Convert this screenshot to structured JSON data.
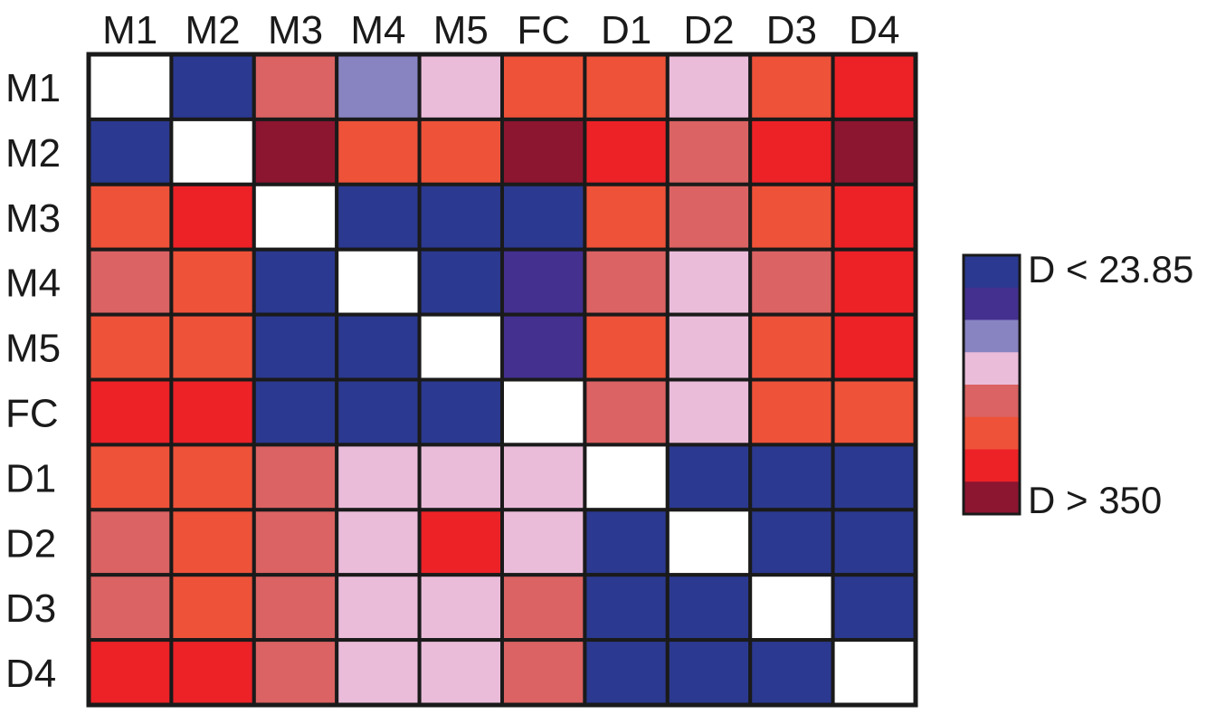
{
  "chart_data": {
    "type": "heatmap",
    "title": "",
    "columns": [
      "M1",
      "M2",
      "M3",
      "M4",
      "M5",
      "FC",
      "D1",
      "D2",
      "D3",
      "D4"
    ],
    "rows": [
      "M1",
      "M2",
      "M3",
      "M4",
      "M5",
      "FC",
      "D1",
      "D2",
      "D3",
      "D4"
    ],
    "levels": [
      {
        "color": "#ffffff"
      },
      {
        "color": "#2b3990"
      },
      {
        "color": "#43308f"
      },
      {
        "color": "#8884c2"
      },
      {
        "color": "#eabcda"
      },
      {
        "color": "#db6363"
      },
      {
        "color": "#ee5239"
      },
      {
        "color": "#ec2227"
      },
      {
        "color": "#8c1530"
      }
    ],
    "matrix": [
      [
        0,
        1,
        5,
        3,
        4,
        6,
        6,
        4,
        6,
        7
      ],
      [
        1,
        0,
        8,
        6,
        6,
        8,
        7,
        5,
        7,
        8
      ],
      [
        6,
        7,
        0,
        1,
        1,
        1,
        6,
        5,
        6,
        7
      ],
      [
        5,
        6,
        1,
        0,
        1,
        2,
        5,
        4,
        5,
        7
      ],
      [
        6,
        6,
        1,
        1,
        0,
        2,
        6,
        4,
        6,
        7
      ],
      [
        7,
        7,
        1,
        1,
        1,
        0,
        5,
        4,
        6,
        6
      ],
      [
        6,
        6,
        5,
        4,
        4,
        4,
        0,
        1,
        1,
        1
      ],
      [
        5,
        6,
        5,
        4,
        7,
        4,
        1,
        0,
        1,
        1
      ],
      [
        5,
        6,
        5,
        4,
        4,
        5,
        1,
        1,
        0,
        1
      ],
      [
        7,
        7,
        5,
        4,
        4,
        5,
        1,
        1,
        1,
        0
      ]
    ],
    "legend": {
      "placement": "right",
      "colors": [
        "#2b3990",
        "#43308f",
        "#8884c2",
        "#eabcda",
        "#db6363",
        "#ee5239",
        "#ec2227",
        "#8c1530"
      ],
      "top_label": "D < 23.85",
      "bottom_label": "D > 350"
    }
  }
}
